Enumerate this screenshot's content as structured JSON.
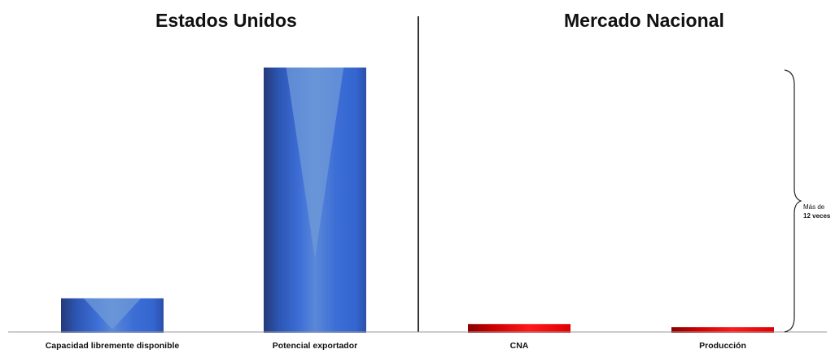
{
  "chart_data": {
    "type": "bar",
    "panels": [
      {
        "title": "Estados Unidos",
        "categories": [
          "Capacidad libremente disponible",
          "Potencial exportador"
        ]
      },
      {
        "title": "Mercado Nacional",
        "categories": [
          "CNA",
          "Producción"
        ]
      }
    ],
    "categories": [
      "Capacidad libremente disponible",
      "Potencial exportador",
      "CNA",
      "Producción"
    ],
    "values": [
      13,
      100,
      3.3,
      2.1
    ],
    "ylim": [
      0,
      100
    ],
    "xlabel": "",
    "ylabel": "",
    "grid": false,
    "legend": "none",
    "bar_colors": [
      "#3a63c8",
      "#3a63c8",
      "#e00000",
      "#e00000"
    ],
    "annotation": {
      "line1": "Más de",
      "line2": "12 veces"
    }
  }
}
